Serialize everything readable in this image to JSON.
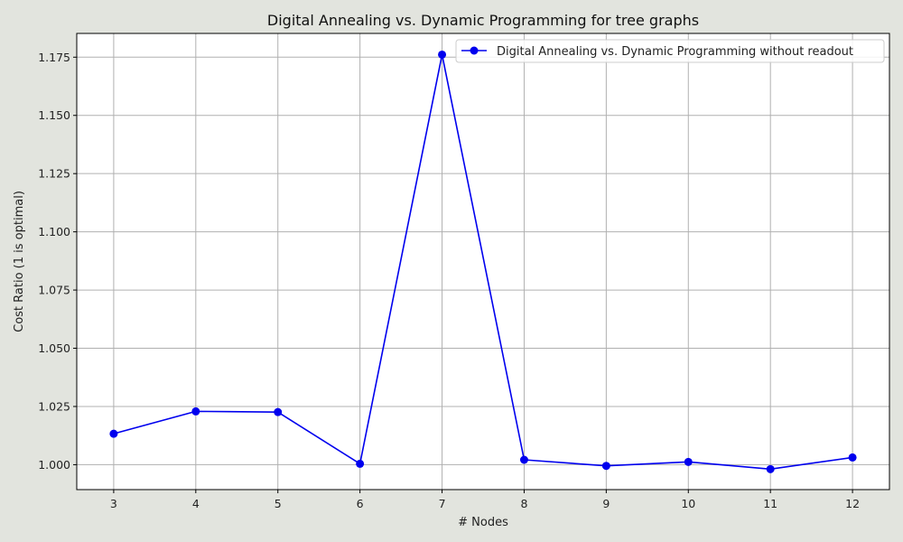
{
  "chart_data": {
    "type": "line",
    "title": "Digital Annealing vs. Dynamic Programming for tree graphs",
    "xlabel": "# Nodes",
    "ylabel": "Cost Ratio (1 is optimal)",
    "x": [
      3,
      4,
      5,
      6,
      7,
      8,
      9,
      10,
      11,
      12
    ],
    "series": [
      {
        "name": "Digital Annealing vs. Dynamic Programming without readout",
        "color": "#0000ee",
        "marker": "circle",
        "values": [
          1.0133,
          1.0229,
          1.0226,
          1.0004,
          1.1761,
          1.0021,
          0.9995,
          1.0012,
          0.9981,
          1.0031
        ]
      }
    ],
    "xticks": [
      3,
      4,
      5,
      6,
      7,
      8,
      9,
      10,
      11,
      12
    ],
    "yticks": [
      1.0,
      1.025,
      1.05,
      1.075,
      1.1,
      1.125,
      1.15,
      1.175
    ],
    "ytick_labels": [
      "1.000",
      "1.025",
      "1.050",
      "1.075",
      "1.100",
      "1.125",
      "1.150",
      "1.175"
    ],
    "xlim": [
      2.55,
      12.45
    ],
    "ylim": [
      0.9893,
      1.1852
    ],
    "grid": true,
    "legend_position": "top-right",
    "background_color": "#e2e4de",
    "plot_background_color": "#ffffff",
    "grid_color": "#b0b0b0"
  }
}
